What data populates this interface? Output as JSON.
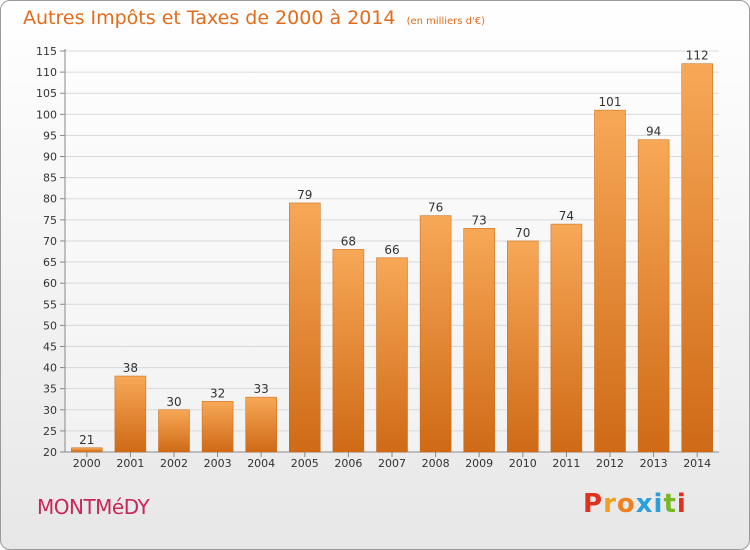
{
  "header": {
    "title": "Autres Impôts et Taxes de 2000 à 2014",
    "subtitle": "(en milliers d'€)"
  },
  "footer": {
    "town": "MONTMéDY",
    "brand": "Proxiti",
    "brand_colors": [
      "#e0301e",
      "#f0a020",
      "#f08020",
      "#2a9fd8",
      "#2a9fd8",
      "#7ab827",
      "#e0301e"
    ]
  },
  "colors": {
    "bar_top": "#f7a857",
    "bar_bottom": "#cf6a16",
    "title": "#e06c1c",
    "town": "#c8275a"
  },
  "chart_data": {
    "type": "bar",
    "title": "Autres Impôts et Taxes de 2000 à 2014",
    "subtitle": "(en milliers d'€)",
    "xlabel": "",
    "ylabel": "",
    "categories": [
      "2000",
      "2001",
      "2002",
      "2003",
      "2004",
      "2005",
      "2006",
      "2007",
      "2008",
      "2009",
      "2010",
      "2011",
      "2012",
      "2013",
      "2014"
    ],
    "values": [
      21,
      38,
      30,
      32,
      33,
      79,
      68,
      66,
      76,
      73,
      70,
      74,
      101,
      94,
      112
    ],
    "ylim": [
      20,
      115
    ],
    "yticks": [
      20,
      25,
      30,
      35,
      40,
      45,
      50,
      55,
      60,
      65,
      70,
      75,
      80,
      85,
      90,
      95,
      100,
      105,
      110,
      115
    ],
    "grid": true,
    "legend": "none"
  }
}
